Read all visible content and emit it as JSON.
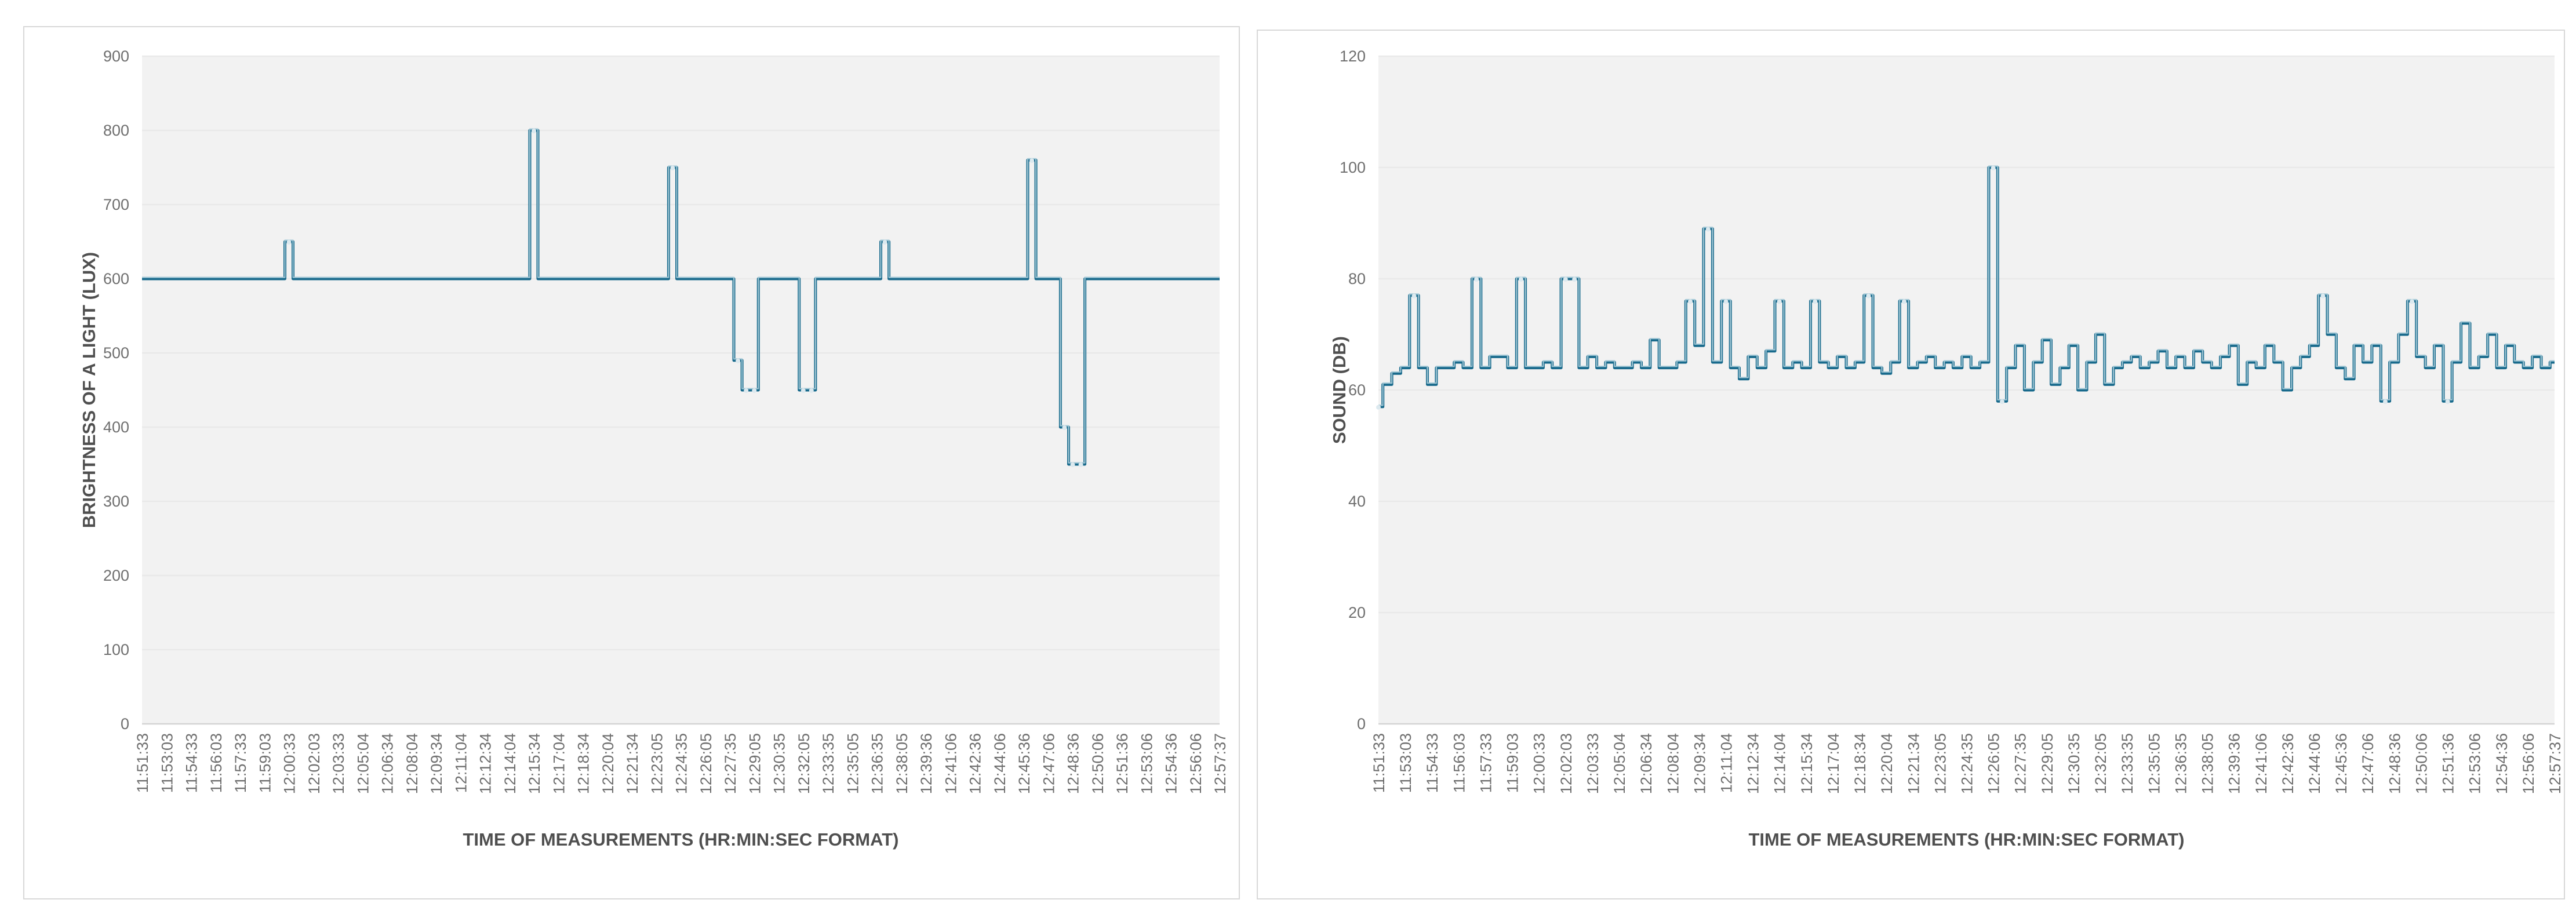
{
  "page": {
    "background": "#ffffff",
    "card_border_color": "#d8d8d8",
    "plot_background": "#f2f2f2",
    "grid_color": "#e9e9e9",
    "axis_line_color": "#d4d4d4",
    "tick_text_color": "#6f6f6f",
    "axis_title_color": "#4f4f4f"
  },
  "chart_data": [
    {
      "type": "line",
      "interpolation": "step-mid",
      "title": "",
      "xlabel": "TIME OF MEASUREMENTS (HR:MIN:SEC FORMAT)",
      "ylabel": "BRIGHTNESS OF A LIGHT  (LUX)",
      "ylim": [
        0,
        900
      ],
      "ytick_step": 100,
      "yticks": [
        0,
        100,
        200,
        300,
        400,
        500,
        600,
        700,
        800,
        900
      ],
      "grid": true,
      "legend": "none",
      "line_color": "#186a8c",
      "line_highlight_color": "#a3c8d6",
      "marker_color": "#dce9ef",
      "markers": {
        "mode": "off-baseline",
        "baseline": 600
      },
      "x_tick_labels": [
        "11:51:33",
        "11:53:03",
        "11:54:33",
        "11:56:03",
        "11:57:33",
        "11:59:03",
        "12:00:33",
        "12:02:03",
        "12:03:33",
        "12:05:04",
        "12:06:34",
        "12:08:04",
        "12:09:34",
        "12:11:04",
        "12:12:34",
        "12:14:04",
        "12:15:34",
        "12:17:04",
        "12:18:34",
        "12:20:04",
        "12:21:34",
        "12:23:05",
        "12:24:35",
        "12:26:05",
        "12:27:35",
        "12:29:05",
        "12:30:35",
        "12:32:05",
        "12:33:35",
        "12:35:05",
        "12:36:35",
        "12:38:05",
        "12:39:36",
        "12:41:06",
        "12:42:36",
        "12:44:06",
        "12:45:36",
        "12:47:06",
        "12:48:36",
        "12:50:06",
        "12:51:36",
        "12:53:06",
        "12:54:36",
        "12:56:06",
        "12:57:37"
      ],
      "samples_per_tick": 3,
      "values": [
        600,
        600,
        600,
        600,
        600,
        600,
        600,
        600,
        600,
        600,
        600,
        600,
        600,
        600,
        600,
        600,
        600,
        600,
        650,
        600,
        600,
        600,
        600,
        600,
        600,
        600,
        600,
        600,
        600,
        600,
        600,
        600,
        600,
        600,
        600,
        600,
        600,
        600,
        600,
        600,
        600,
        600,
        600,
        600,
        600,
        600,
        600,
        600,
        800,
        600,
        600,
        600,
        600,
        600,
        600,
        600,
        600,
        600,
        600,
        600,
        600,
        600,
        600,
        600,
        600,
        750,
        600,
        600,
        600,
        600,
        600,
        600,
        600,
        490,
        450,
        450,
        600,
        600,
        600,
        600,
        600,
        450,
        450,
        600,
        600,
        600,
        600,
        600,
        600,
        600,
        600,
        650,
        600,
        600,
        600,
        600,
        600,
        600,
        600,
        600,
        600,
        600,
        600,
        600,
        600,
        600,
        600,
        600,
        600,
        760,
        600,
        600,
        600,
        400,
        350,
        350,
        600,
        600,
        600,
        600,
        600,
        600,
        600,
        600,
        600,
        600,
        600,
        600,
        600,
        600,
        600,
        600,
        600
      ]
    },
    {
      "type": "line",
      "interpolation": "step-mid",
      "title": "",
      "xlabel": "TIME OF MEASUREMENTS (HR:MIN:SEC FORMAT)",
      "ylabel": "SOUND (DB)",
      "ylim": [
        0,
        120
      ],
      "ytick_step": 20,
      "yticks": [
        0,
        20,
        40,
        60,
        80,
        100,
        120
      ],
      "grid": true,
      "legend": "none",
      "line_color": "#186a8c",
      "line_highlight_color": "#a3c8d6",
      "marker_color": "#dce9ef",
      "markers": {
        "mode": "threshold",
        "high": 76,
        "low": 58
      },
      "x_tick_labels": [
        "11:51:33",
        "11:53:03",
        "11:54:33",
        "11:56:03",
        "11:57:33",
        "11:59:03",
        "12:00:33",
        "12:02:03",
        "12:03:33",
        "12:05:04",
        "12:06:34",
        "12:08:04",
        "12:09:34",
        "12:11:04",
        "12:12:34",
        "12:14:04",
        "12:15:34",
        "12:17:04",
        "12:18:34",
        "12:20:04",
        "12:21:34",
        "12:23:05",
        "12:24:35",
        "12:26:05",
        "12:27:35",
        "12:29:05",
        "12:30:35",
        "12:32:05",
        "12:33:35",
        "12:35:05",
        "12:36:35",
        "12:38:05",
        "12:39:36",
        "12:41:06",
        "12:42:36",
        "12:44:06",
        "12:45:36",
        "12:47:06",
        "12:48:36",
        "12:50:06",
        "12:51:36",
        "12:53:06",
        "12:54:36",
        "12:56:06",
        "12:57:37"
      ],
      "samples_per_tick": 3,
      "values": [
        57,
        61,
        63,
        64,
        77,
        64,
        61,
        64,
        64,
        65,
        64,
        80,
        64,
        66,
        66,
        64,
        80,
        64,
        64,
        65,
        64,
        80,
        80,
        64,
        66,
        64,
        65,
        64,
        64,
        65,
        64,
        69,
        64,
        64,
        65,
        76,
        68,
        89,
        65,
        76,
        64,
        62,
        66,
        64,
        67,
        76,
        64,
        65,
        64,
        76,
        65,
        64,
        66,
        64,
        65,
        77,
        64,
        63,
        65,
        76,
        64,
        65,
        66,
        64,
        65,
        64,
        66,
        64,
        65,
        100,
        58,
        64,
        68,
        60,
        65,
        69,
        61,
        64,
        68,
        60,
        65,
        70,
        61,
        64,
        65,
        66,
        64,
        65,
        67,
        64,
        66,
        64,
        67,
        65,
        64,
        66,
        68,
        61,
        65,
        64,
        68,
        65,
        60,
        64,
        66,
        68,
        77,
        70,
        64,
        62,
        68,
        65,
        68,
        58,
        65,
        70,
        76,
        66,
        64,
        68,
        58,
        65,
        72,
        64,
        66,
        70,
        64,
        68,
        65,
        64,
        66,
        64,
        65
      ]
    }
  ]
}
